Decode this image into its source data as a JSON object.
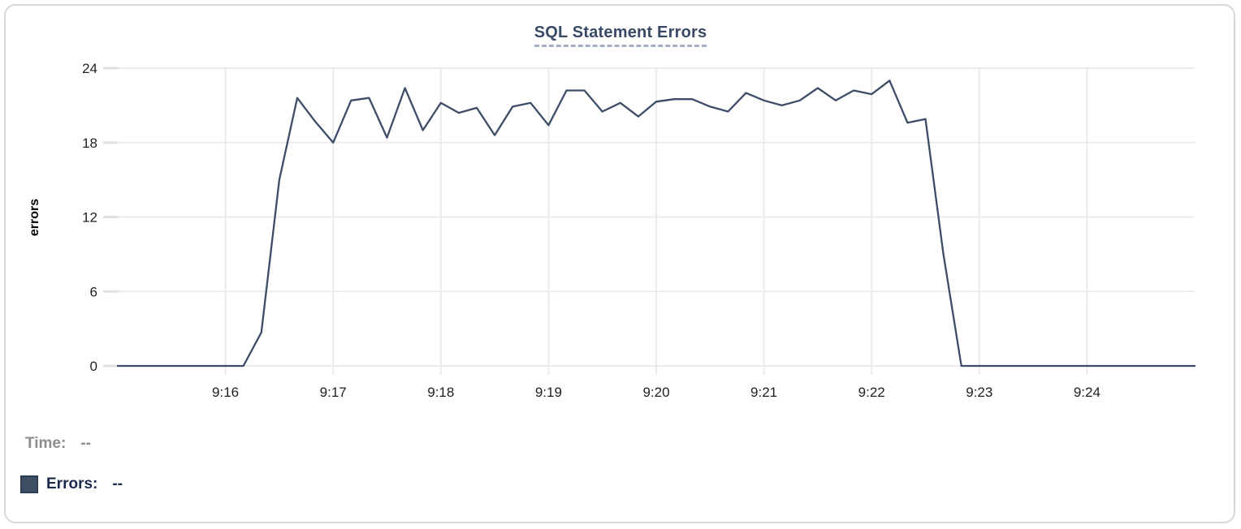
{
  "chart_data": {
    "type": "line",
    "title": "SQL Statement Errors",
    "xlabel": "",
    "ylabel": "errors",
    "ylim": [
      0,
      24
    ],
    "y_ticks": [
      0,
      6,
      12,
      18,
      24
    ],
    "x_tick_labels": [
      "9:16",
      "9:17",
      "9:18",
      "9:19",
      "9:20",
      "9:21",
      "9:22",
      "9:23",
      "9:24"
    ],
    "x_tick_offsets_s": [
      60,
      120,
      180,
      240,
      300,
      360,
      420,
      480,
      540
    ],
    "xlim_s": [
      0,
      600
    ],
    "start_time": "9:15:00",
    "interval_s": 10,
    "grid": true,
    "legend_position": "bottom-left",
    "series": [
      {
        "name": "Errors",
        "values": [
          0,
          0,
          0,
          0,
          0,
          0,
          0,
          0,
          2.7,
          15,
          21.6,
          19.7,
          18,
          21.4,
          21.6,
          18.4,
          22.4,
          19,
          21.2,
          20.4,
          20.8,
          18.6,
          20.9,
          21.2,
          19.4,
          22.2,
          22.2,
          20.5,
          21.2,
          20.1,
          21.3,
          21.5,
          21.5,
          20.9,
          20.5,
          22,
          21.4,
          21,
          21.4,
          22.4,
          21.4,
          22.2,
          21.9,
          23,
          19.6,
          19.9,
          9,
          0,
          0,
          0,
          0,
          0,
          0,
          0,
          0,
          0,
          0,
          0,
          0,
          0,
          0
        ]
      }
    ]
  },
  "legend": {
    "time_label": "Time:",
    "time_value": "--",
    "errors_label": "Errors:",
    "errors_value": "--"
  },
  "colors": {
    "line": "#3d4d68",
    "swatch": "#3e4e63",
    "title": "#3a4a66",
    "title_underline": "#a3aec6",
    "grid": "#ebebeb",
    "tick_text": "#1f1f1f",
    "legend_time": "#8c8c8c",
    "legend_errors": "#1b2a4a"
  }
}
